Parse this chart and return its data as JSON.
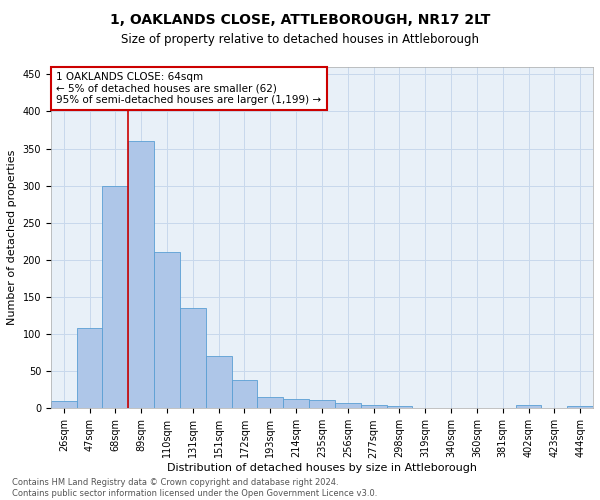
{
  "title": "1, OAKLANDS CLOSE, ATTLEBOROUGH, NR17 2LT",
  "subtitle": "Size of property relative to detached houses in Attleborough",
  "xlabel": "Distribution of detached houses by size in Attleborough",
  "ylabel": "Number of detached properties",
  "footnote": "Contains HM Land Registry data © Crown copyright and database right 2024.\nContains public sector information licensed under the Open Government Licence v3.0.",
  "bins": [
    "26sqm",
    "47sqm",
    "68sqm",
    "89sqm",
    "110sqm",
    "131sqm",
    "151sqm",
    "172sqm",
    "193sqm",
    "214sqm",
    "235sqm",
    "256sqm",
    "277sqm",
    "298sqm",
    "319sqm",
    "340sqm",
    "360sqm",
    "381sqm",
    "402sqm",
    "423sqm",
    "444sqm"
  ],
  "values": [
    10,
    108,
    300,
    360,
    210,
    135,
    70,
    38,
    15,
    12,
    11,
    7,
    5,
    3,
    0,
    0,
    0,
    0,
    4,
    0,
    3
  ],
  "bar_color": "#aec6e8",
  "bar_edge_color": "#5a9fd4",
  "vline_x_idx": 2.5,
  "vline_color": "#cc0000",
  "annotation_text": "1 OAKLANDS CLOSE: 64sqm\n← 5% of detached houses are smaller (62)\n95% of semi-detached houses are larger (1,199) →",
  "annotation_box_color": "#cc0000",
  "ylim": [
    0,
    460
  ],
  "yticks": [
    0,
    50,
    100,
    150,
    200,
    250,
    300,
    350,
    400,
    450
  ],
  "grid_color": "#c8d8ec",
  "background_color": "#e8f0f8",
  "title_fontsize": 10,
  "subtitle_fontsize": 8.5,
  "ylabel_fontsize": 8,
  "xlabel_fontsize": 8,
  "tick_fontsize": 7,
  "annot_fontsize": 7.5,
  "footnote_fontsize": 6
}
